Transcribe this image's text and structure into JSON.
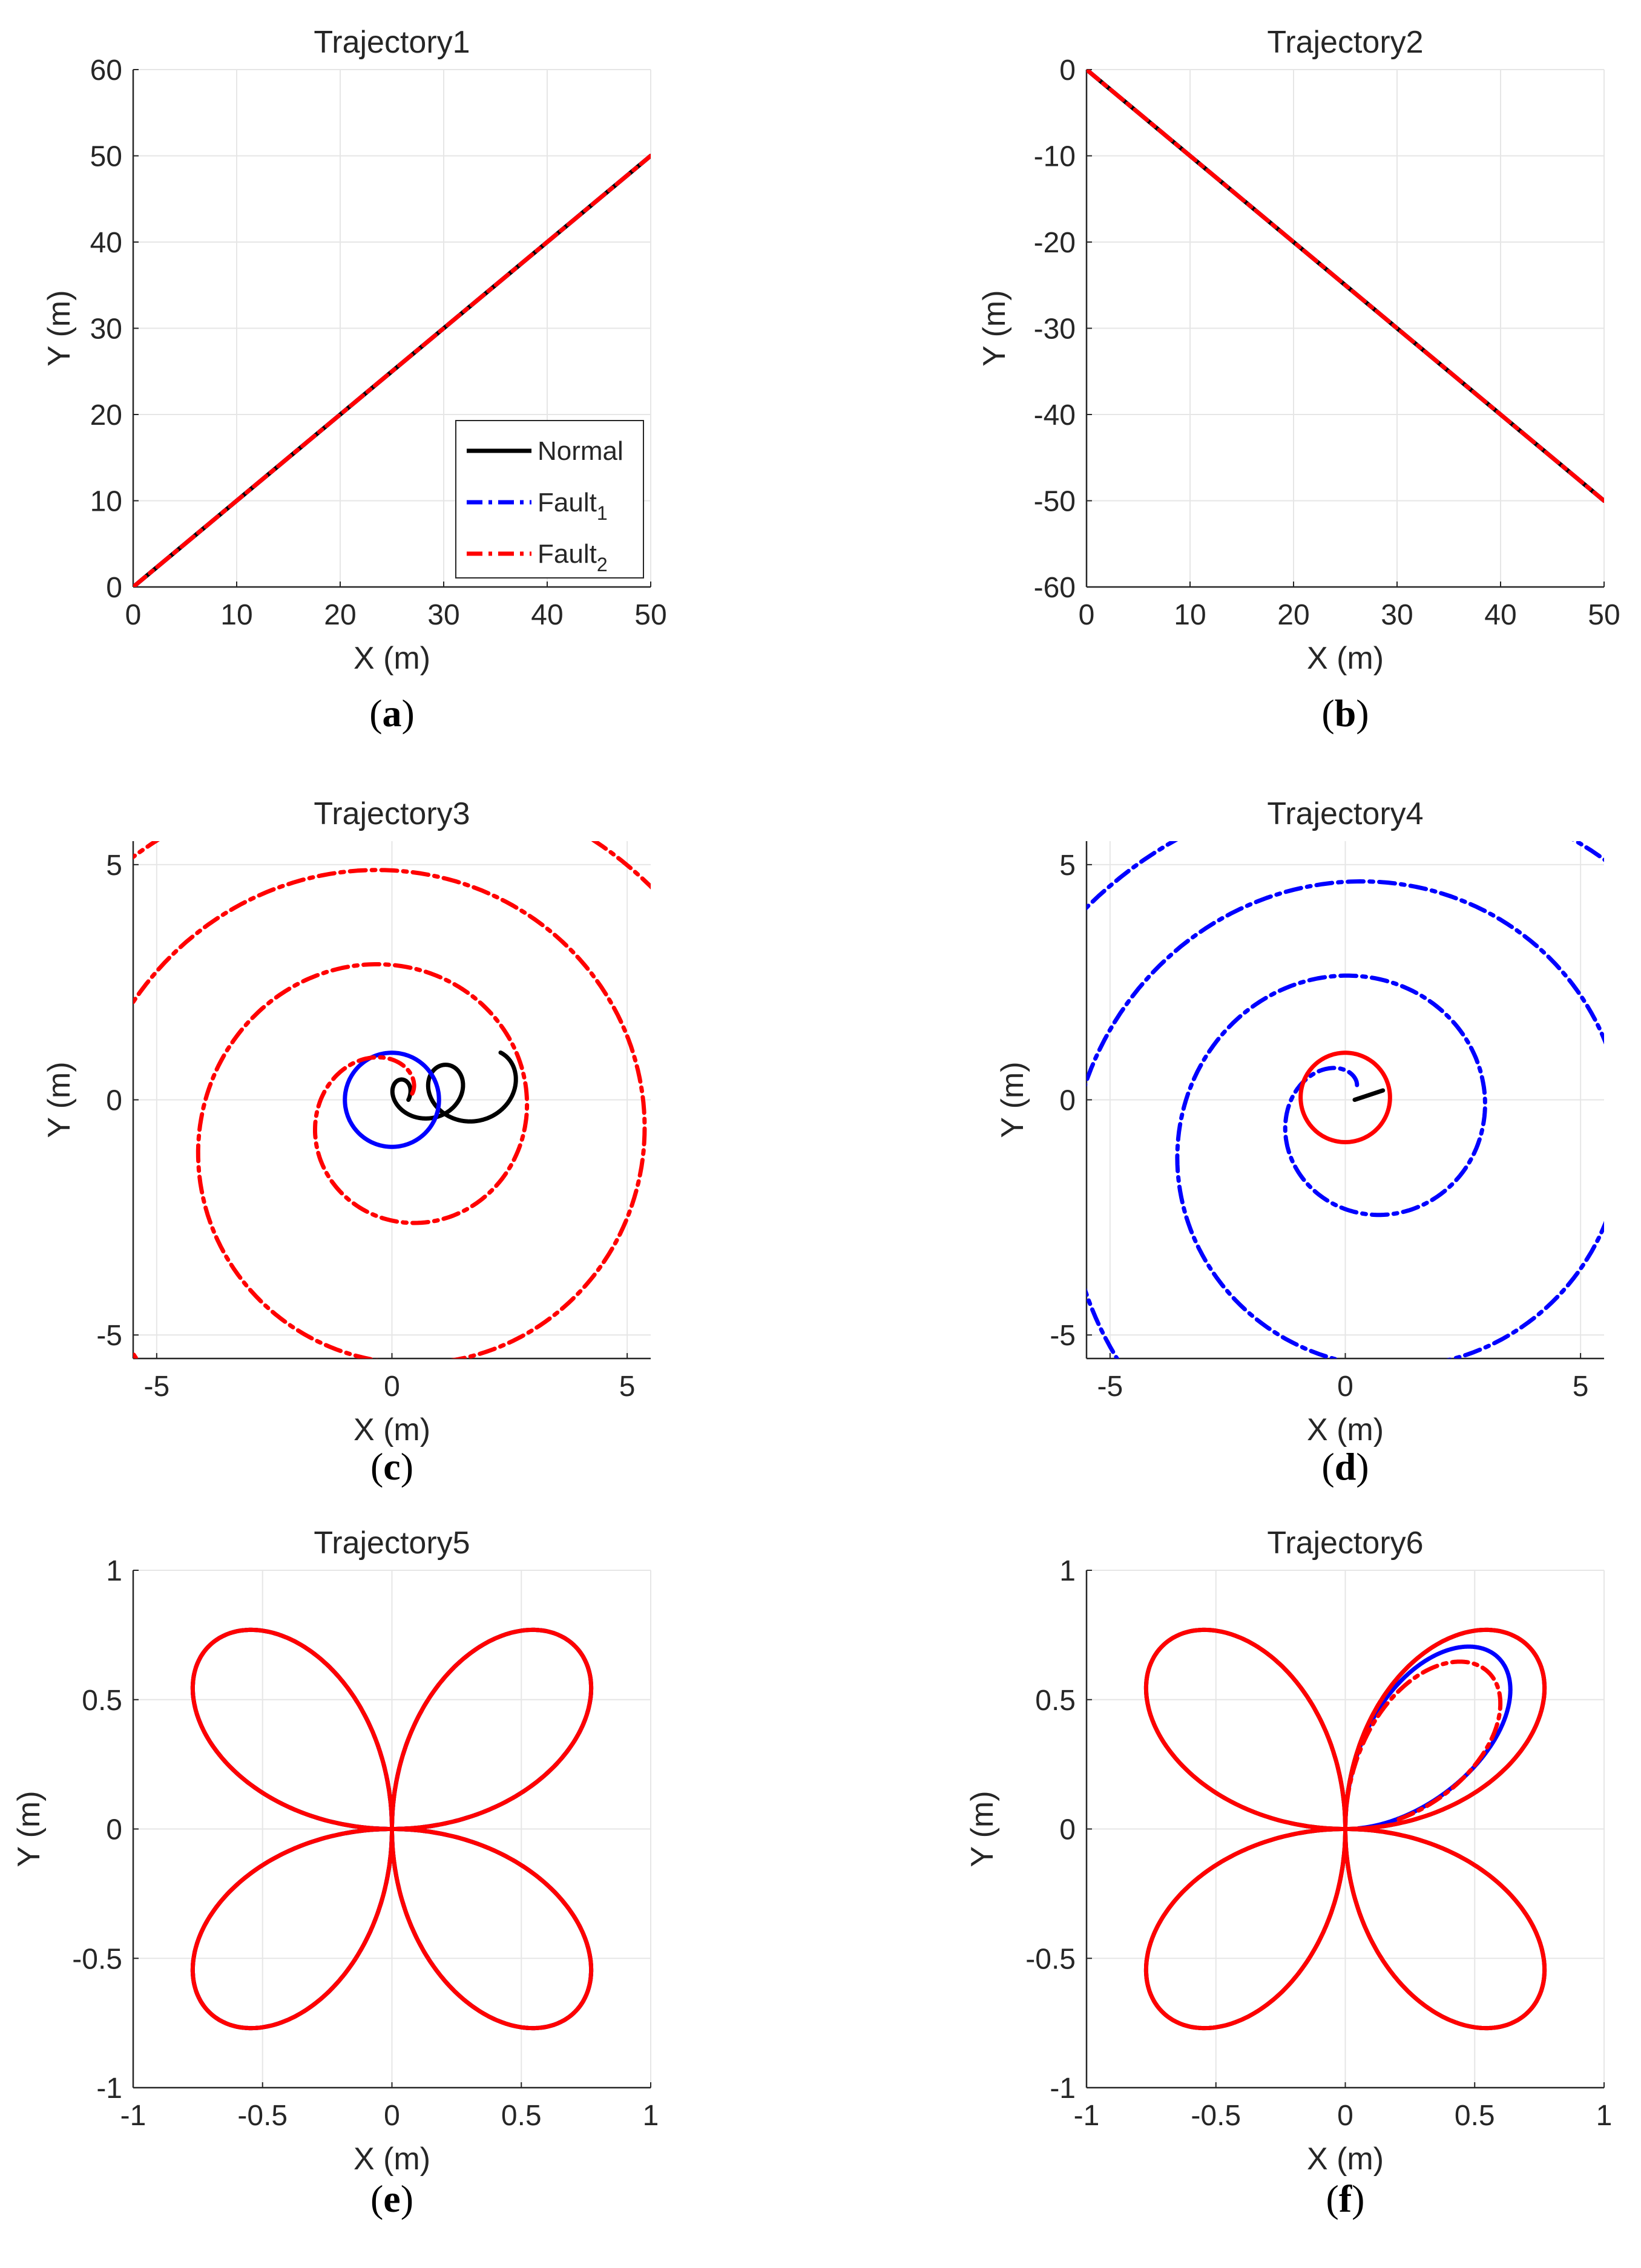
{
  "colors": {
    "normal": "#000000",
    "fault1": "#0000ff",
    "fault2": "#ff0000",
    "grid": "#e6e6e6",
    "axis": "#262626"
  },
  "legend": {
    "entries": [
      {
        "label": "Normal",
        "sub": "",
        "style": "solid",
        "color": "#000000"
      },
      {
        "label": "Fault",
        "sub": "1",
        "style": "dashdot",
        "color": "#0000ff"
      },
      {
        "label": "Fault",
        "sub": "2",
        "style": "dashdot",
        "color": "#ff0000"
      }
    ]
  },
  "chart_data": [
    {
      "id": "a",
      "type": "line",
      "title": "Trajectory1",
      "caption": "a",
      "xlabel": "X (m)",
      "ylabel": "Y (m)",
      "xlim": [
        0,
        50
      ],
      "ylim": [
        0,
        60
      ],
      "xticks": [
        0,
        10,
        20,
        30,
        40,
        50
      ],
      "yticks": [
        0,
        10,
        20,
        30,
        40,
        50,
        60
      ],
      "grid": true,
      "legend": "lower-right",
      "series": [
        {
          "name": "Normal",
          "style": "solid",
          "color": "#000000",
          "curve": "line",
          "params": {
            "x0": 0,
            "y0": 0,
            "x1": 50,
            "y1": 50
          }
        },
        {
          "name": "Fault1",
          "style": "dashdot",
          "color": "#0000ff",
          "curve": "line",
          "params": {
            "x0": 0,
            "y0": 0,
            "x1": 50,
            "y1": 50
          }
        },
        {
          "name": "Fault2",
          "style": "dashdot",
          "color": "#ff0000",
          "curve": "line",
          "params": {
            "x0": 0,
            "y0": 0,
            "x1": 50,
            "y1": 50
          }
        }
      ]
    },
    {
      "id": "b",
      "type": "line",
      "title": "Trajectory2",
      "caption": "b",
      "xlabel": "X (m)",
      "ylabel": "Y (m)",
      "xlim": [
        0,
        50
      ],
      "ylim": [
        -60,
        0
      ],
      "xticks": [
        0,
        10,
        20,
        30,
        40,
        50
      ],
      "yticks": [
        -60,
        -50,
        -40,
        -30,
        -20,
        -10,
        0
      ],
      "grid": true,
      "series": [
        {
          "name": "Normal",
          "style": "solid",
          "color": "#000000",
          "curve": "line",
          "params": {
            "x0": 0,
            "y0": 0,
            "x1": 50,
            "y1": -50
          }
        },
        {
          "name": "Fault1",
          "style": "dashdot",
          "color": "#0000ff",
          "curve": "line",
          "params": {
            "x0": 0,
            "y0": 0,
            "x1": 50,
            "y1": -50
          }
        },
        {
          "name": "Fault2",
          "style": "dashdot",
          "color": "#ff0000",
          "curve": "line",
          "params": {
            "x0": 0,
            "y0": 0,
            "x1": 50,
            "y1": -50
          }
        }
      ]
    },
    {
      "id": "c",
      "type": "line",
      "title": "Trajectory3",
      "caption": "c",
      "xlabel": "X (m)",
      "ylabel": "Y (m)",
      "xlim": [
        -5.5,
        5.5
      ],
      "ylim": [
        -5.5,
        5.5
      ],
      "xticks": [
        -5,
        0,
        5
      ],
      "yticks": [
        -5,
        0,
        5
      ],
      "grid": true,
      "series": [
        {
          "name": "Normal",
          "style": "solid",
          "color": "#000000",
          "curve": "drift-spiral",
          "params": {
            "a0": 0.35,
            "k": 0.03,
            "turns": 2.2,
            "vx": 0.15,
            "vy": 0.02,
            "w": 1,
            "phase": 0
          }
        },
        {
          "name": "Fault1",
          "style": "solid",
          "color": "#0000ff",
          "curve": "circle",
          "params": {
            "cx": 0,
            "cy": 0,
            "r": 1
          }
        },
        {
          "name": "Fault2",
          "style": "dashdot",
          "color": "#ff0000",
          "curve": "drift-spiral",
          "params": {
            "a0": 0.45,
            "k": 0.4,
            "turns": 7.2,
            "vx": 0.0,
            "vy": -0.08,
            "w": 1,
            "phase": 0.3
          }
        }
      ]
    },
    {
      "id": "d",
      "type": "line",
      "title": "Trajectory4",
      "caption": "d",
      "xlabel": "X (m)",
      "ylabel": "Y (m)",
      "xlim": [
        -5.5,
        5.5
      ],
      "ylim": [
        -5.5,
        5.5
      ],
      "xticks": [
        -5,
        0,
        5
      ],
      "yticks": [
        -5,
        0,
        5
      ],
      "grid": true,
      "series": [
        {
          "name": "Normal",
          "style": "solid",
          "color": "#000000",
          "curve": "line",
          "params": {
            "x0": 0.2,
            "y0": 0.0,
            "x1": 0.8,
            "y1": 0.2
          }
        },
        {
          "name": "Fault1",
          "style": "dashdot",
          "color": "#0000ff",
          "curve": "drift-spiral",
          "params": {
            "a0": 0.4,
            "k": 0.42,
            "turns": 7.5,
            "vx": 0.05,
            "vy": -0.1,
            "w": 1,
            "phase": 0.9
          }
        },
        {
          "name": "Fault2",
          "style": "solid",
          "color": "#ff0000",
          "curve": "circle",
          "params": {
            "cx": 0.0,
            "cy": 0.05,
            "r": 0.95
          }
        }
      ]
    },
    {
      "id": "e",
      "type": "line",
      "title": "Trajectory5",
      "caption": "e",
      "xlabel": "X (m)",
      "ylabel": "Y (m)",
      "xlim": [
        -1,
        1
      ],
      "ylim": [
        -1,
        1
      ],
      "xticks": [
        -1,
        -0.5,
        0,
        0.5,
        1
      ],
      "yticks": [
        -1,
        -0.5,
        0,
        0.5,
        1
      ],
      "grid": true,
      "series": [
        {
          "name": "Normal",
          "style": "solid",
          "color": "#000000",
          "curve": "rose",
          "params": {
            "r": 1,
            "range": [
              0,
              6.2832
            ]
          }
        },
        {
          "name": "Fault1",
          "style": "dashdot",
          "color": "#0000ff",
          "curve": "rose",
          "params": {
            "r": 1,
            "range": [
              0,
              6.2832
            ]
          }
        },
        {
          "name": "Fault2",
          "style": "solid",
          "color": "#ff0000",
          "curve": "rose",
          "params": {
            "r": 1,
            "range": [
              0,
              6.2832
            ]
          }
        }
      ]
    },
    {
      "id": "f",
      "type": "line",
      "title": "Trajectory6",
      "caption": "f",
      "xlabel": "X (m)",
      "ylabel": "Y (m)",
      "xlim": [
        -1,
        1
      ],
      "ylim": [
        -1,
        1
      ],
      "xticks": [
        -1,
        -0.5,
        0,
        0.5,
        1
      ],
      "yticks": [
        -1,
        -0.5,
        0,
        0.5,
        1
      ],
      "grid": true,
      "series": [
        {
          "name": "Normal",
          "style": "solid",
          "color": "#000000",
          "curve": "rose",
          "params": {
            "r": 1,
            "range": [
              0,
              6.2832
            ]
          }
        },
        {
          "name": "Fault1",
          "style": "solid",
          "color": "#0000ff",
          "curve": "rose-skew",
          "params": {
            "r": 0.93,
            "range": [
              0.05,
              1.5708
            ],
            "squeeze": 0.75
          }
        },
        {
          "name": "Fault2",
          "style": "dashdot",
          "color": "#ff0000",
          "curve": "rose-skew",
          "params": {
            "r": 0.85,
            "range": [
              0.18,
              1.5708
            ],
            "squeeze": 0.55
          }
        },
        {
          "name": "Fault2",
          "style": "solid",
          "color": "#ff0000",
          "curve": "rose",
          "params": {
            "r": 1,
            "range": [
              0,
              6.2832
            ]
          }
        }
      ]
    }
  ]
}
